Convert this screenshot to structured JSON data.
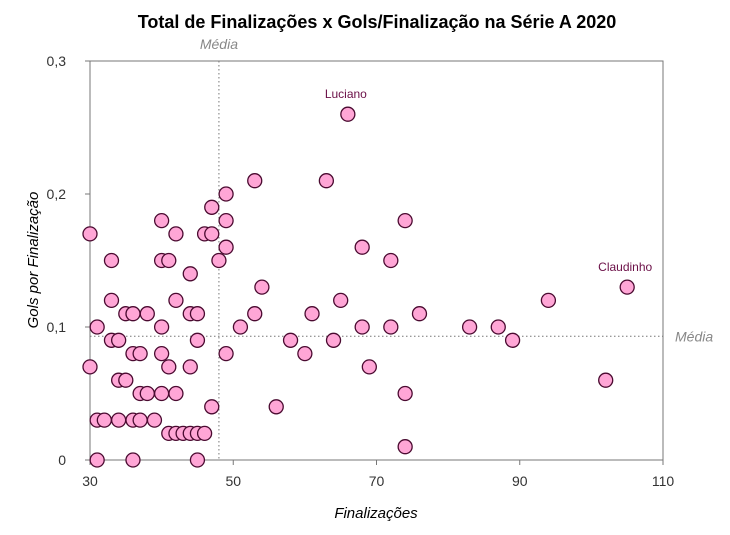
{
  "chart_data": {
    "type": "scatter",
    "title": "Total de Finalizações x Gols/Finalização na Série A 2020",
    "xlabel": "Finalizações",
    "ylabel": "Gols por Finalização",
    "xlim": [
      30,
      110
    ],
    "ylim": [
      0,
      0.3
    ],
    "xticks": [
      30,
      50,
      70,
      90,
      110
    ],
    "yticks": [
      0,
      0.1,
      0.2,
      0.3
    ],
    "xtick_labels": [
      "30",
      "50",
      "70",
      "90",
      "110"
    ],
    "ytick_labels": [
      "0",
      "0,1",
      "0,2",
      "0,3"
    ],
    "grid": false,
    "reference_lines": {
      "x": {
        "value": 48,
        "label": "Média"
      },
      "y": {
        "value": 0.093,
        "label": "Média"
      }
    },
    "marker_fill": "#ffa6d6",
    "marker_stroke": "#4a0a30",
    "annotation_color": "#6b0f47",
    "annotations": [
      {
        "label": "Luciano",
        "x": 66,
        "y": 0.26
      },
      {
        "label": "Claudinho",
        "x": 105,
        "y": 0.13
      }
    ],
    "points": [
      {
        "x": 30,
        "y": 0.17
      },
      {
        "x": 30,
        "y": 0.07
      },
      {
        "x": 31,
        "y": 0.1
      },
      {
        "x": 31,
        "y": 0.03
      },
      {
        "x": 31,
        "y": 0.0
      },
      {
        "x": 32,
        "y": 0.03
      },
      {
        "x": 33,
        "y": 0.15
      },
      {
        "x": 33,
        "y": 0.12
      },
      {
        "x": 33,
        "y": 0.09
      },
      {
        "x": 34,
        "y": 0.09
      },
      {
        "x": 34,
        "y": 0.06
      },
      {
        "x": 34,
        "y": 0.03
      },
      {
        "x": 35,
        "y": 0.11
      },
      {
        "x": 35,
        "y": 0.06
      },
      {
        "x": 36,
        "y": 0.11
      },
      {
        "x": 36,
        "y": 0.08
      },
      {
        "x": 36,
        "y": 0.03
      },
      {
        "x": 36,
        "y": 0.0
      },
      {
        "x": 37,
        "y": 0.08
      },
      {
        "x": 37,
        "y": 0.05
      },
      {
        "x": 37,
        "y": 0.03
      },
      {
        "x": 38,
        "y": 0.11
      },
      {
        "x": 38,
        "y": 0.05
      },
      {
        "x": 39,
        "y": 0.03
      },
      {
        "x": 40,
        "y": 0.18
      },
      {
        "x": 40,
        "y": 0.15
      },
      {
        "x": 40,
        "y": 0.1
      },
      {
        "x": 40,
        "y": 0.08
      },
      {
        "x": 40,
        "y": 0.05
      },
      {
        "x": 41,
        "y": 0.15
      },
      {
        "x": 41,
        "y": 0.07
      },
      {
        "x": 41,
        "y": 0.02
      },
      {
        "x": 42,
        "y": 0.17
      },
      {
        "x": 42,
        "y": 0.12
      },
      {
        "x": 42,
        "y": 0.05
      },
      {
        "x": 42,
        "y": 0.02
      },
      {
        "x": 43,
        "y": 0.02
      },
      {
        "x": 44,
        "y": 0.14
      },
      {
        "x": 44,
        "y": 0.11
      },
      {
        "x": 44,
        "y": 0.07
      },
      {
        "x": 44,
        "y": 0.02
      },
      {
        "x": 45,
        "y": 0.11
      },
      {
        "x": 45,
        "y": 0.09
      },
      {
        "x": 45,
        "y": 0.02
      },
      {
        "x": 45,
        "y": 0.0
      },
      {
        "x": 46,
        "y": 0.17
      },
      {
        "x": 46,
        "y": 0.02
      },
      {
        "x": 47,
        "y": 0.19
      },
      {
        "x": 47,
        "y": 0.17
      },
      {
        "x": 47,
        "y": 0.04
      },
      {
        "x": 48,
        "y": 0.15
      },
      {
        "x": 49,
        "y": 0.2
      },
      {
        "x": 49,
        "y": 0.18
      },
      {
        "x": 49,
        "y": 0.16
      },
      {
        "x": 49,
        "y": 0.08
      },
      {
        "x": 51,
        "y": 0.1
      },
      {
        "x": 53,
        "y": 0.21
      },
      {
        "x": 53,
        "y": 0.11
      },
      {
        "x": 54,
        "y": 0.13
      },
      {
        "x": 56,
        "y": 0.04
      },
      {
        "x": 58,
        "y": 0.09
      },
      {
        "x": 60,
        "y": 0.08
      },
      {
        "x": 61,
        "y": 0.11
      },
      {
        "x": 63,
        "y": 0.21
      },
      {
        "x": 64,
        "y": 0.09
      },
      {
        "x": 65,
        "y": 0.12
      },
      {
        "x": 66,
        "y": 0.26
      },
      {
        "x": 68,
        "y": 0.16
      },
      {
        "x": 68,
        "y": 0.1
      },
      {
        "x": 69,
        "y": 0.07
      },
      {
        "x": 72,
        "y": 0.15
      },
      {
        "x": 72,
        "y": 0.1
      },
      {
        "x": 74,
        "y": 0.18
      },
      {
        "x": 74,
        "y": 0.05
      },
      {
        "x": 74,
        "y": 0.01
      },
      {
        "x": 76,
        "y": 0.11
      },
      {
        "x": 83,
        "y": 0.1
      },
      {
        "x": 87,
        "y": 0.1
      },
      {
        "x": 89,
        "y": 0.09
      },
      {
        "x": 94,
        "y": 0.12
      },
      {
        "x": 102,
        "y": 0.06
      },
      {
        "x": 105,
        "y": 0.13
      }
    ]
  }
}
